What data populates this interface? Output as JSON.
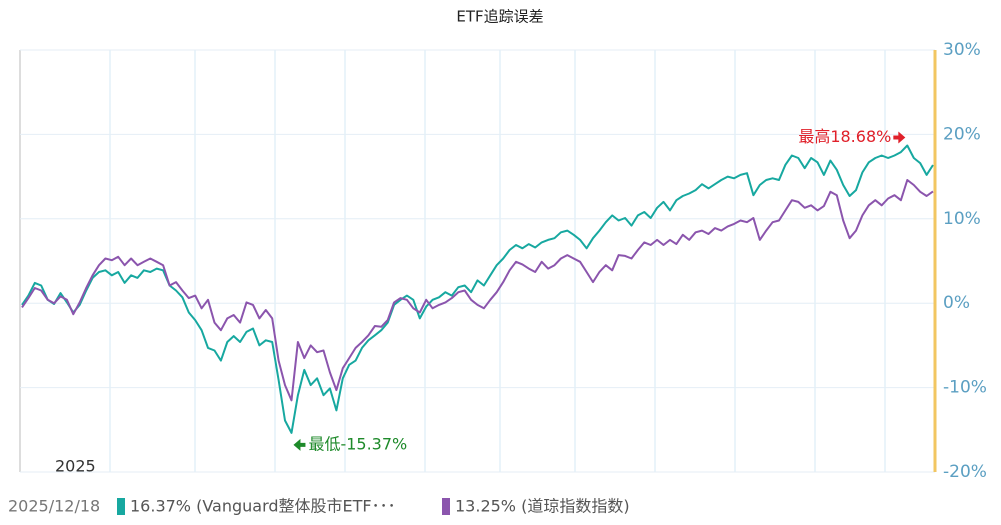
{
  "chart_data": {
    "type": "line",
    "title": "ETF追踪误差",
    "year_label": "2025",
    "date_label": "2025/12/18",
    "categories": [
      null,
      null,
      null,
      null,
      null,
      null,
      null,
      null,
      null,
      null,
      null,
      null,
      null,
      null,
      null,
      null,
      null,
      null,
      null,
      null,
      null,
      null,
      null,
      null,
      null,
      null,
      null,
      null,
      null,
      null,
      null,
      null,
      null,
      null,
      null,
      null,
      null,
      null,
      null,
      null,
      null,
      null,
      null,
      null,
      null,
      null,
      null,
      null,
      null,
      null,
      null,
      null,
      null,
      null,
      null,
      null,
      null,
      null,
      null,
      null,
      null,
      null,
      null,
      null,
      null,
      null,
      null,
      null,
      null,
      null,
      null,
      null,
      null,
      null,
      null,
      null,
      null,
      null,
      null,
      null,
      null,
      null,
      null,
      null,
      null,
      null,
      null,
      null,
      null,
      null,
      null,
      null,
      null,
      null,
      null,
      null,
      null,
      null,
      null,
      null,
      null,
      null,
      null,
      null,
      null,
      null,
      null,
      null,
      null,
      null,
      null,
      null,
      null,
      null,
      null,
      null,
      null,
      null,
      null,
      null,
      null,
      null,
      null,
      null,
      null,
      null,
      null,
      null,
      null,
      null,
      null,
      null,
      null,
      null,
      null,
      null,
      null,
      null,
      null,
      null,
      null,
      null,
      null
    ],
    "series": [
      {
        "name": "16.37% (Vanguard整体股市ETF･･･",
        "color": "#17a8a0",
        "values": [
          -0.2,
          0.9,
          2.4,
          2.1,
          0.4,
          -0.1,
          1.2,
          0.1,
          -1.1,
          -0.2,
          1.5,
          3.0,
          3.7,
          3.9,
          3.3,
          3.7,
          2.4,
          3.3,
          3.0,
          3.9,
          3.7,
          4.1,
          3.9,
          2.1,
          1.5,
          0.7,
          -1.1,
          -2.0,
          -3.2,
          -5.3,
          -5.6,
          -6.8,
          -4.6,
          -3.9,
          -4.6,
          -3.4,
          -3.0,
          -5.0,
          -4.4,
          -4.6,
          -9.1,
          -13.9,
          -15.37,
          -10.9,
          -7.9,
          -9.7,
          -8.9,
          -10.9,
          -10.1,
          -12.7,
          -8.9,
          -7.3,
          -6.8,
          -5.3,
          -4.4,
          -3.8,
          -3.2,
          -2.3,
          -0.2,
          0.4,
          0.9,
          0.4,
          -1.8,
          -0.4,
          0.4,
          0.7,
          1.3,
          0.9,
          1.9,
          2.1,
          1.3,
          2.7,
          2.1,
          3.3,
          4.5,
          5.3,
          6.3,
          6.9,
          6.5,
          7.0,
          6.6,
          7.2,
          7.5,
          7.7,
          8.4,
          8.6,
          8.1,
          7.5,
          6.5,
          7.7,
          8.6,
          9.6,
          10.4,
          9.8,
          10.1,
          9.2,
          10.4,
          10.8,
          10.1,
          11.3,
          12.0,
          11.0,
          12.2,
          12.7,
          13.0,
          13.4,
          14.1,
          13.6,
          14.1,
          14.6,
          15.0,
          14.8,
          15.2,
          15.4,
          12.8,
          14.0,
          14.6,
          14.8,
          14.6,
          16.4,
          17.5,
          17.2,
          16.0,
          17.2,
          16.7,
          15.2,
          16.9,
          15.8,
          14.0,
          12.7,
          13.4,
          15.5,
          16.7,
          17.2,
          17.5,
          17.2,
          17.5,
          17.9,
          18.68,
          17.2,
          16.6,
          15.2,
          16.37
        ]
      },
      {
        "name": "13.25% (道琼指数指数)",
        "color": "#8b55ad",
        "values": [
          -0.5,
          0.6,
          1.8,
          1.5,
          0.4,
          0.0,
          0.8,
          0.4,
          -1.3,
          0.1,
          1.8,
          3.3,
          4.5,
          5.3,
          5.1,
          5.5,
          4.5,
          5.3,
          4.5,
          4.9,
          5.3,
          4.9,
          4.5,
          2.1,
          2.5,
          1.5,
          0.6,
          0.9,
          -0.6,
          0.4,
          -2.3,
          -3.2,
          -1.8,
          -1.4,
          -2.3,
          0.1,
          -0.2,
          -1.8,
          -0.8,
          -1.8,
          -6.8,
          -9.7,
          -11.5,
          -4.6,
          -6.5,
          -5.0,
          -5.8,
          -5.6,
          -8.2,
          -10.3,
          -7.7,
          -6.5,
          -5.3,
          -4.6,
          -3.8,
          -2.7,
          -2.8,
          -2.0,
          0.1,
          0.6,
          0.4,
          -0.6,
          -1.1,
          0.4,
          -0.6,
          -0.2,
          0.1,
          0.6,
          1.3,
          1.5,
          0.4,
          -0.2,
          -0.6,
          0.4,
          1.3,
          2.5,
          3.9,
          4.9,
          4.6,
          4.1,
          3.7,
          4.9,
          4.1,
          4.5,
          5.3,
          5.7,
          5.3,
          4.9,
          3.7,
          2.5,
          3.7,
          4.5,
          3.9,
          5.7,
          5.6,
          5.3,
          6.3,
          7.2,
          6.9,
          7.5,
          6.9,
          7.5,
          7.0,
          8.1,
          7.5,
          8.4,
          8.6,
          8.2,
          8.9,
          8.6,
          9.1,
          9.4,
          9.8,
          9.6,
          10.1,
          7.5,
          8.6,
          9.6,
          9.8,
          11.0,
          12.2,
          12.0,
          11.3,
          11.6,
          11.0,
          11.5,
          13.2,
          12.8,
          9.8,
          7.7,
          8.6,
          10.4,
          11.6,
          12.2,
          11.6,
          12.4,
          12.8,
          12.2,
          14.6,
          14.0,
          13.2,
          12.7,
          13.25
        ]
      }
    ],
    "ylim": [
      -20,
      30
    ],
    "yticks": [
      {
        "value": -20,
        "label": "-20%"
      },
      {
        "value": -10,
        "label": "-10%"
      },
      {
        "value": 0,
        "label": "0%"
      },
      {
        "value": 10,
        "label": "10%"
      },
      {
        "value": 20,
        "label": "20%"
      },
      {
        "value": 30,
        "label": "30%"
      }
    ],
    "grid": true,
    "annotations": [
      {
        "text": "最高18.68%",
        "color": "#e0202a",
        "series": 0,
        "index": 138
      },
      {
        "text": "最低-15.37%",
        "color": "#1e8a2a",
        "series": 0,
        "index": 42
      }
    ]
  }
}
